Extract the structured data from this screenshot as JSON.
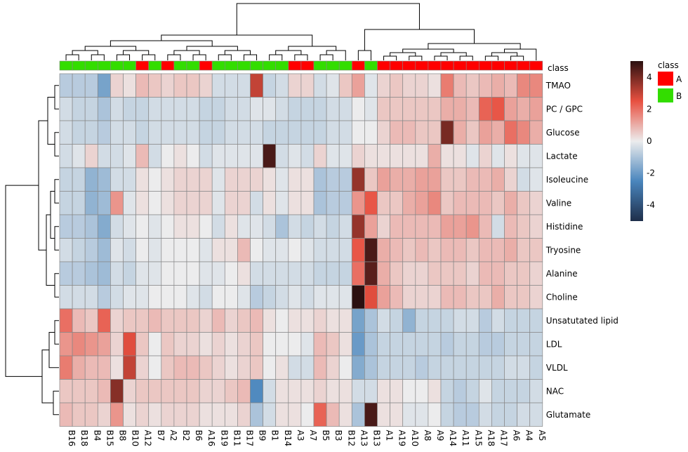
{
  "chart_data": {
    "type": "heatmap",
    "columns": [
      "B16",
      "B18",
      "B4",
      "B15",
      "B8",
      "B10",
      "A12",
      "B7",
      "A2",
      "B2",
      "B6",
      "A16",
      "B19",
      "B11",
      "B17",
      "B9",
      "B1",
      "B14",
      "A3",
      "A7",
      "B5",
      "B3",
      "B12",
      "A13",
      "B13",
      "A1",
      "A19",
      "A10",
      "A8",
      "A9",
      "A14",
      "A11",
      "A15",
      "A18",
      "A17",
      "A6",
      "A4",
      "A5"
    ],
    "column_class": [
      "B",
      "B",
      "B",
      "B",
      "B",
      "B",
      "A",
      "B",
      "A",
      "B",
      "B",
      "A",
      "B",
      "B",
      "B",
      "B",
      "B",
      "B",
      "A",
      "A",
      "B",
      "B",
      "B",
      "A",
      "B",
      "A",
      "A",
      "A",
      "A",
      "A",
      "A",
      "A",
      "A",
      "A",
      "A",
      "A",
      "A",
      "A"
    ],
    "rows": [
      "TMAO",
      "PC / GPC",
      "Glucose",
      "Lactate",
      "Isoleucine",
      "Valine",
      "Histidine",
      "Tryosine",
      "Alanine",
      "Choline",
      "Unsatutated lipid",
      "LDL",
      "VLDL",
      "NAC",
      "Glutamate"
    ],
    "values": [
      [
        -0.8,
        -0.8,
        -0.8,
        -1.8,
        0.4,
        0.2,
        0.8,
        0.6,
        0.4,
        0.6,
        0.6,
        0.4,
        -0.4,
        -0.4,
        -0.4,
        3.0,
        -0.6,
        -0.4,
        0.4,
        0.4,
        -0.4,
        -0.2,
        0.6,
        1.2,
        -0.2,
        0.4,
        0.6,
        0.4,
        0.4,
        0.2,
        1.8,
        0.8,
        0.6,
        0.8,
        1.0,
        0.8,
        1.6,
        1.6
      ],
      [
        -0.4,
        -0.6,
        -0.6,
        -1.0,
        -0.4,
        -0.6,
        -0.6,
        -0.4,
        -0.4,
        -0.4,
        -0.4,
        -0.6,
        -0.6,
        -0.4,
        -0.4,
        -0.2,
        -0.2,
        -0.4,
        -0.6,
        -0.6,
        -0.6,
        -0.4,
        -0.4,
        0.0,
        -0.2,
        0.6,
        0.6,
        0.6,
        0.6,
        0.6,
        1.0,
        1.0,
        0.8,
        2.2,
        2.4,
        1.2,
        1.0,
        1.2
      ],
      [
        -0.4,
        -0.6,
        -0.6,
        -0.8,
        -0.4,
        -0.4,
        -0.6,
        -0.4,
        -0.4,
        -0.4,
        -0.4,
        -0.6,
        -0.6,
        -0.4,
        -0.4,
        -0.4,
        -0.6,
        -0.6,
        -0.6,
        -0.6,
        -0.6,
        -0.4,
        -0.4,
        0.0,
        0.0,
        0.4,
        0.8,
        0.8,
        0.6,
        0.6,
        4.0,
        1.0,
        0.6,
        1.2,
        1.0,
        2.0,
        1.6,
        1.0
      ],
      [
        -0.4,
        -0.2,
        0.4,
        -0.4,
        -0.4,
        -0.2,
        0.8,
        -0.4,
        0.0,
        0.2,
        0.0,
        -0.4,
        -0.2,
        -0.2,
        -0.2,
        -0.2,
        4.6,
        -0.4,
        -0.2,
        -0.4,
        0.4,
        -0.2,
        -0.2,
        0.4,
        0.2,
        0.2,
        0.2,
        0.2,
        0.2,
        1.0,
        0.2,
        0.2,
        -0.2,
        0.4,
        -0.2,
        0.2,
        -0.2,
        -0.2
      ],
      [
        -0.6,
        -0.6,
        -1.4,
        -1.2,
        -0.4,
        -0.4,
        0.2,
        0.0,
        0.2,
        0.4,
        0.4,
        0.4,
        -0.2,
        0.4,
        0.4,
        0.4,
        0.2,
        -0.2,
        0.2,
        0.2,
        -1.0,
        -0.8,
        -0.8,
        3.6,
        0.6,
        1.2,
        1.0,
        1.0,
        1.2,
        1.2,
        0.6,
        0.6,
        0.8,
        0.8,
        1.0,
        0.4,
        -0.4,
        -0.2
      ],
      [
        -0.6,
        -0.6,
        -1.4,
        -1.2,
        1.4,
        -0.2,
        0.2,
        0.0,
        0.2,
        0.4,
        0.4,
        0.4,
        -0.2,
        0.4,
        0.4,
        -0.4,
        0.2,
        -0.2,
        0.2,
        0.2,
        -1.0,
        -0.8,
        -0.8,
        1.4,
        2.4,
        0.6,
        0.6,
        1.0,
        1.2,
        1.6,
        0.6,
        0.8,
        0.8,
        0.8,
        0.6,
        1.0,
        0.6,
        0.4
      ],
      [
        -0.8,
        -0.8,
        -1.0,
        -1.6,
        -0.4,
        -0.2,
        0.0,
        -0.2,
        0.0,
        0.2,
        0.2,
        0.0,
        -0.4,
        0.2,
        -0.2,
        -0.2,
        -0.4,
        -1.0,
        -0.4,
        -0.6,
        -0.4,
        -0.6,
        -0.4,
        3.6,
        1.2,
        0.4,
        0.8,
        0.8,
        0.8,
        0.8,
        1.2,
        1.2,
        1.4,
        0.8,
        -0.4,
        0.8,
        0.6,
        0.4
      ],
      [
        -0.4,
        -0.6,
        -0.8,
        -1.2,
        -0.2,
        -0.4,
        0.0,
        -0.2,
        0.0,
        0.0,
        0.0,
        -0.2,
        0.2,
        0.2,
        0.8,
        0.0,
        -0.2,
        -0.2,
        0.0,
        -0.2,
        -0.4,
        -0.4,
        -0.4,
        2.4,
        4.6,
        1.0,
        0.8,
        0.6,
        0.8,
        0.6,
        0.8,
        0.8,
        0.6,
        0.8,
        0.8,
        1.0,
        0.6,
        0.6
      ],
      [
        -0.8,
        -0.8,
        -1.0,
        -1.2,
        -0.4,
        -0.6,
        -0.2,
        -0.2,
        0.0,
        0.0,
        0.0,
        -0.2,
        -0.2,
        0.0,
        0.2,
        -0.4,
        -0.4,
        -0.4,
        -0.4,
        -0.4,
        -0.6,
        -0.6,
        -0.6,
        2.0,
        4.4,
        1.0,
        0.6,
        0.4,
        0.4,
        0.6,
        0.6,
        0.6,
        0.4,
        0.8,
        0.8,
        0.6,
        0.6,
        0.4
      ],
      [
        -0.4,
        -0.4,
        -0.4,
        -0.8,
        -0.4,
        -0.2,
        -0.2,
        0.0,
        0.0,
        0.0,
        -0.2,
        -0.4,
        0.0,
        0.0,
        -0.2,
        -0.8,
        -0.6,
        -0.4,
        -0.2,
        -0.4,
        -0.2,
        -0.2,
        -0.2,
        5.0,
        2.6,
        1.2,
        0.8,
        0.4,
        0.4,
        0.4,
        0.8,
        0.8,
        0.6,
        0.6,
        1.0,
        0.6,
        0.6,
        0.4
      ],
      [
        2.0,
        0.8,
        0.6,
        2.2,
        0.4,
        0.6,
        0.6,
        0.8,
        0.6,
        0.6,
        0.6,
        0.4,
        0.8,
        0.4,
        0.6,
        0.8,
        0.2,
        0.0,
        0.2,
        0.2,
        0.4,
        0.2,
        0.2,
        -1.8,
        -1.0,
        -0.4,
        -0.6,
        -1.4,
        -0.6,
        -0.6,
        -0.6,
        -0.4,
        -0.4,
        -0.8,
        -0.4,
        -0.6,
        -0.6,
        -0.6
      ],
      [
        1.4,
        1.6,
        1.4,
        1.2,
        0.4,
        2.6,
        0.6,
        0.0,
        0.6,
        0.4,
        0.4,
        0.2,
        0.4,
        0.2,
        0.4,
        0.6,
        0.0,
        0.0,
        0.0,
        -0.2,
        0.8,
        0.6,
        0.2,
        -2.0,
        -1.0,
        -0.6,
        -0.6,
        -0.6,
        -0.6,
        -0.6,
        -0.8,
        -0.6,
        -0.6,
        -0.8,
        -0.8,
        -0.6,
        -0.6,
        -0.6
      ],
      [
        1.8,
        1.0,
        0.8,
        0.8,
        0.2,
        3.0,
        0.4,
        0.0,
        0.6,
        0.8,
        0.8,
        0.6,
        0.4,
        0.2,
        0.4,
        0.6,
        0.0,
        0.2,
        -0.4,
        -0.4,
        0.8,
        0.4,
        0.0,
        -1.6,
        -1.0,
        -0.6,
        -0.6,
        -0.6,
        -0.8,
        -0.6,
        -0.6,
        -0.6,
        -0.6,
        -0.6,
        -0.6,
        -0.4,
        -0.4,
        -0.6
      ],
      [
        0.6,
        0.6,
        0.6,
        0.8,
        3.8,
        0.4,
        0.6,
        0.6,
        0.6,
        0.6,
        0.6,
        0.4,
        0.4,
        0.6,
        0.8,
        -2.4,
        -0.4,
        0.2,
        0.2,
        0.2,
        0.4,
        0.2,
        0.2,
        -0.4,
        -0.4,
        0.2,
        0.2,
        0.0,
        0.0,
        0.2,
        -0.6,
        -0.8,
        -0.6,
        -0.2,
        -0.6,
        -0.6,
        -0.6,
        -0.4
      ],
      [
        0.8,
        0.6,
        0.6,
        0.4,
        1.4,
        0.2,
        0.4,
        0.2,
        0.4,
        0.4,
        0.4,
        0.2,
        0.2,
        0.2,
        0.4,
        -1.0,
        -0.4,
        0.2,
        0.2,
        0.0,
        2.2,
        0.8,
        0.2,
        -1.0,
        4.6,
        0.2,
        0.2,
        -0.2,
        -0.2,
        0.0,
        -0.6,
        -0.8,
        -0.8,
        -0.4,
        -0.6,
        -0.6,
        -0.4,
        -0.4
      ]
    ],
    "class_label": "class",
    "legend_title": "class",
    "legend_entries": [
      {
        "name": "A",
        "color": "#ff0000"
      },
      {
        "name": "B",
        "color": "#33dd00"
      }
    ],
    "colorbar_ticks": [
      4,
      2,
      0,
      -2,
      -4
    ],
    "color_range": [
      -5,
      5
    ],
    "colors": {
      "low": "#1e2e4a",
      "mid_low": "#4a86bd",
      "mid": "#ececed",
      "mid_high": "#e85040",
      "high": "#2b1010",
      "grid": "#888888"
    }
  }
}
